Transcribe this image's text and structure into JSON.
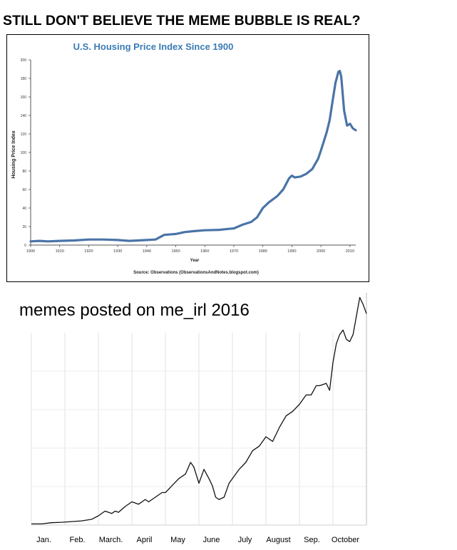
{
  "headline": "STILL DON'T BELIEVE THE MEME BUBBLE IS REAL?",
  "chart_data": [
    {
      "type": "line",
      "title": "U.S. Housing Price Index Since 1900",
      "xlabel": "Year",
      "ylabel": "Housing Price Index",
      "source": "Source: Observations (ObservationsAndNotes.blogspot.com)",
      "xlim": [
        1900,
        2012
      ],
      "ylim": [
        0,
        200
      ],
      "xticks": [
        1900,
        1910,
        1920,
        1930,
        1940,
        1950,
        1960,
        1970,
        1980,
        1990,
        2000,
        2010
      ],
      "yticks": [
        0,
        20,
        40,
        60,
        80,
        100,
        120,
        140,
        160,
        180,
        200
      ],
      "grid": false,
      "line_color": "#4a74a7",
      "series": [
        {
          "x": [
            1900,
            1903,
            1906,
            1910,
            1915,
            1920,
            1925,
            1930,
            1934,
            1940,
            1943,
            1946,
            1950,
            1953,
            1956,
            1960,
            1965,
            1968,
            1970,
            1973,
            1976,
            1978,
            1980,
            1982,
            1985,
            1987,
            1989,
            1990,
            1991,
            1993,
            1995,
            1997,
            1999,
            2000,
            2002,
            2003,
            2004,
            2005,
            2006,
            2006.5,
            2007,
            2008,
            2009,
            2010,
            2011,
            2012
          ],
          "y": [
            4,
            4.5,
            4,
            4.5,
            5,
            6,
            6,
            5.5,
            4.5,
            5.5,
            6,
            11,
            12,
            14,
            15,
            16,
            16.5,
            17.5,
            18,
            22,
            25,
            30,
            40,
            46,
            53,
            60,
            72,
            75,
            73,
            74,
            77,
            82,
            93,
            102,
            122,
            135,
            155,
            175,
            187,
            188,
            182,
            145,
            129,
            131,
            126,
            124
          ]
        }
      ]
    },
    {
      "type": "line",
      "title": "memes posted on me_irl 2016",
      "xlabel": "",
      "ylabel": "",
      "categories": [
        "Jan.",
        "Feb.",
        "March.",
        "April",
        "May",
        "June",
        "July",
        "August",
        "Sep.",
        "October"
      ],
      "xlim": [
        0,
        10
      ],
      "ylim": [
        0,
        100
      ],
      "grid": true,
      "line_color": "#111111",
      "series": [
        {
          "x": [
            0.0,
            0.3,
            0.6,
            0.9,
            1.2,
            1.5,
            1.8,
            2.0,
            2.2,
            2.4,
            2.5,
            2.6,
            2.8,
            3.0,
            3.2,
            3.4,
            3.5,
            3.6,
            3.8,
            3.9,
            4.0,
            4.2,
            4.4,
            4.6,
            4.75,
            4.85,
            5.0,
            5.15,
            5.3,
            5.4,
            5.5,
            5.6,
            5.75,
            5.9,
            6.0,
            6.2,
            6.4,
            6.6,
            6.8,
            7.0,
            7.2,
            7.4,
            7.6,
            7.8,
            8.0,
            8.2,
            8.35,
            8.5,
            8.6,
            8.8,
            8.9,
            9.0,
            9.1,
            9.2,
            9.3,
            9.4,
            9.5,
            9.6,
            9.7,
            9.8,
            9.9,
            10.0
          ],
          "y": [
            0.5,
            0.5,
            1.0,
            1.2,
            1.5,
            1.8,
            2.5,
            4.0,
            6.0,
            5.0,
            6.0,
            5.5,
            8.0,
            10.0,
            9.0,
            11.0,
            10.0,
            11.0,
            13.0,
            14.0,
            14.0,
            17.0,
            20.0,
            22.0,
            27.0,
            25.0,
            18.0,
            24.0,
            20.0,
            17.0,
            12.0,
            11.0,
            12.0,
            18.0,
            20.0,
            24.0,
            27.0,
            32.0,
            34.0,
            38.0,
            36.0,
            42.0,
            47.0,
            49.0,
            52.0,
            56.0,
            56.0,
            60.0,
            60.0,
            61.0,
            58.0,
            70.0,
            78.0,
            82.0,
            84.0,
            80.0,
            79.0,
            82.0,
            90.0,
            98.0,
            95.0,
            91.0
          ]
        }
      ]
    }
  ]
}
